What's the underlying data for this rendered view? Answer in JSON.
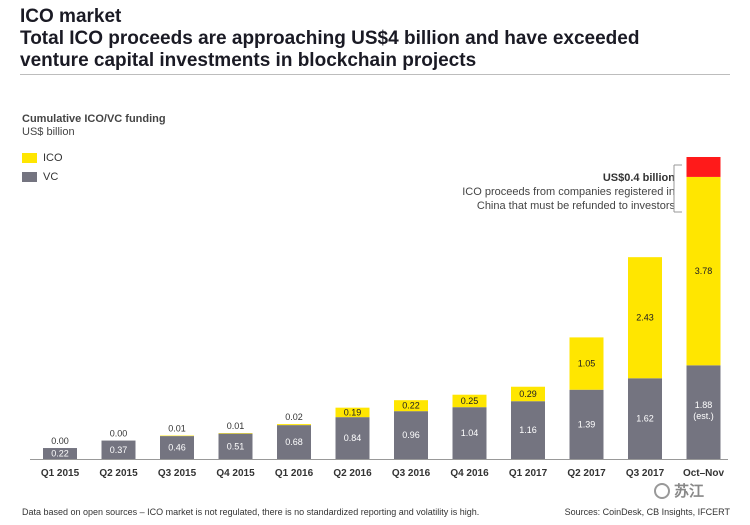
{
  "header": {
    "title_line1": "ICO market",
    "title_line2": "Total ICO proceeds are approaching US$4 billion and have exceeded",
    "title_line3": "venture capital investments in blockchain projects"
  },
  "colors": {
    "ico": "#ffe600",
    "vc": "#747480",
    "refund": "#ff1a1a",
    "text_dark": "#1a1a24"
  },
  "annotation": {
    "title": "US$0.4 billion",
    "line1": "ICO proceeds from companies registered in",
    "line2": "China that must be refunded to investors"
  },
  "footer": {
    "left": "Data based on open sources – ICO market is not regulated, there is no standardized reporting and volatility is high.",
    "right": "Sources: CoinDesk, CB Insights, IFCERT"
  },
  "watermark": "苏江",
  "chart_data": {
    "type": "bar",
    "stacked": true,
    "title": "Cumulative ICO/VC funding",
    "ylabel": "US$ billion",
    "legend_position": "top-left",
    "categories": [
      "Q1 2015",
      "Q2 2015",
      "Q3 2015",
      "Q4 2015",
      "Q1 2016",
      "Q2 2016",
      "Q3 2016",
      "Q4 2016",
      "Q1 2017",
      "Q2 2017",
      "Q3 2017",
      "Oct–Nov"
    ],
    "series": [
      {
        "name": "VC",
        "values": [
          0.22,
          0.37,
          0.46,
          0.51,
          0.68,
          0.84,
          0.96,
          1.04,
          1.16,
          1.39,
          1.62,
          1.88
        ],
        "labels": [
          "0.22",
          "0.37",
          "0.46",
          "0.51",
          "0.68",
          "0.84",
          "0.96",
          "1.04",
          "1.16",
          "1.39",
          "1.62",
          "1.88"
        ]
      },
      {
        "name": "ICO",
        "values": [
          0.0,
          0.0,
          0.01,
          0.01,
          0.02,
          0.19,
          0.22,
          0.25,
          0.29,
          1.05,
          2.43,
          3.78
        ],
        "labels": [
          "0.00",
          "0.00",
          "0.01",
          "0.01",
          "0.02",
          "0.19",
          "0.22",
          "0.25",
          "0.29",
          "1.05",
          "2.43",
          "3.78"
        ]
      }
    ],
    "extra": {
      "category": "Oct–Nov",
      "value": 0.4
    },
    "vc_note": {
      "category": "Oct–Nov",
      "text": "(est.)"
    },
    "ylim": [
      0,
      6.1
    ],
    "grid": false
  }
}
